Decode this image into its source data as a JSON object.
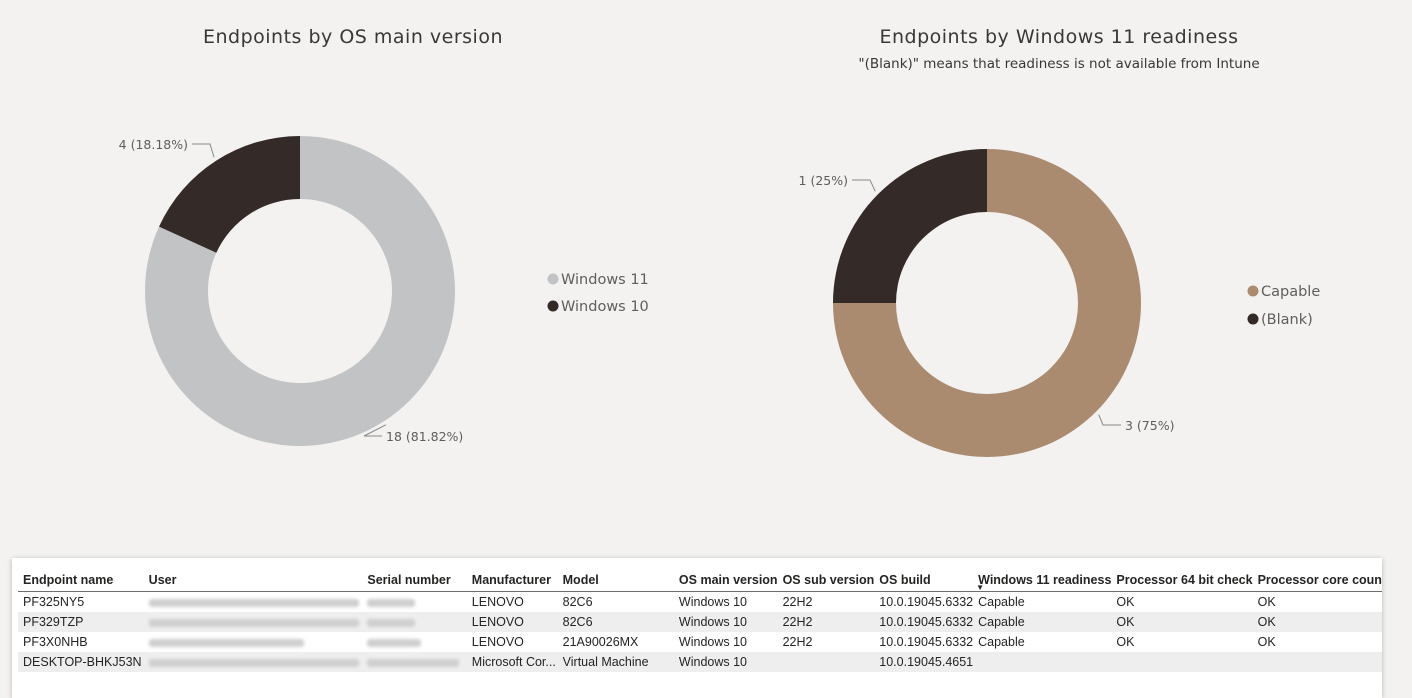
{
  "colors": {
    "background": "#f3f2f1",
    "windows11": "#c1c3c4",
    "windows10": "#342a28",
    "capable": "#ab8b70",
    "blank": "#342a28"
  },
  "chart_data": [
    {
      "type": "donut",
      "title": "Endpoints by OS main version",
      "subtitle": "",
      "legend_position": "right",
      "series": [
        {
          "name": "Windows 11",
          "value": 18,
          "label": "18 (81.82%)",
          "color": "#c1c3c4"
        },
        {
          "name": "Windows 10",
          "value": 4,
          "label": "4 (18.18%)",
          "color": "#342a28"
        }
      ]
    },
    {
      "type": "donut",
      "title": "Endpoints by Windows 11 readiness",
      "subtitle": "\"(Blank)\" means that readiness is not available from Intune",
      "legend_position": "right",
      "series": [
        {
          "name": "Capable",
          "value": 3,
          "label": "3 (75%)",
          "color": "#ab8b70"
        },
        {
          "name": "(Blank)",
          "value": 1,
          "label": "1 (25%)",
          "color": "#342a28"
        }
      ]
    }
  ],
  "table": {
    "columns": [
      "Endpoint name",
      "User",
      "Serial number",
      "Manufacturer",
      "Model",
      "OS main version",
      "OS sub version",
      "OS build",
      "Windows 11 readiness",
      "Processor 64 bit check",
      "Processor core coun"
    ],
    "sorted_column": "Windows 11 readiness",
    "rows": [
      [
        "PF325NY5",
        "",
        "",
        "LENOVO",
        "82C6",
        "Windows 10",
        "22H2",
        "10.0.19045.6332",
        "Capable",
        "OK",
        "OK"
      ],
      [
        "PF329TZP",
        "",
        "",
        "LENOVO",
        "82C6",
        "Windows 10",
        "22H2",
        "10.0.19045.6332",
        "Capable",
        "OK",
        "OK"
      ],
      [
        "PF3X0NHB",
        "",
        "",
        "LENOVO",
        "21A90026MX",
        "Windows 10",
        "22H2",
        "10.0.19045.6332",
        "Capable",
        "OK",
        "OK"
      ],
      [
        "DESKTOP-BHKJ53N",
        "",
        "",
        "Microsoft Cor...",
        "Virtual Machine",
        "Windows 10",
        "",
        "10.0.19045.4651",
        "",
        "",
        ""
      ]
    ]
  }
}
